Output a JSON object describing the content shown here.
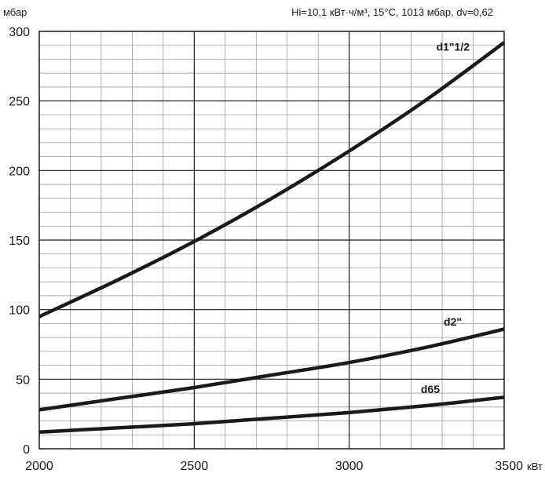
{
  "chart_data": {
    "type": "line",
    "y_unit": "мбар",
    "x_unit": "кВт",
    "conditions_note": "Hi=10,1 кВт·ч/м³, 15°C, 1013 мбар, dv=0,62",
    "xlim": [
      2000,
      3500
    ],
    "ylim": [
      0,
      300
    ],
    "x_ticks": [
      "2000",
      "2500",
      "3000",
      "3500"
    ],
    "y_ticks": [
      "0",
      "50",
      "100",
      "150",
      "200",
      "250",
      "300"
    ],
    "grid": true,
    "series": [
      {
        "name": "d1\"1/2",
        "x": [
          2000,
          2250,
          2500,
          2750,
          3000,
          3250,
          3500
        ],
        "y": [
          95,
          121,
          149,
          180,
          214,
          251,
          292
        ]
      },
      {
        "name": "d2\"",
        "x": [
          2000,
          2250,
          2500,
          2750,
          3000,
          3250,
          3500
        ],
        "y": [
          28,
          36,
          44,
          53,
          62,
          73,
          86
        ]
      },
      {
        "name": "d65",
        "x": [
          2000,
          2250,
          2500,
          2750,
          3000,
          3250,
          3500
        ],
        "y": [
          12,
          15,
          18,
          22,
          26,
          31,
          37
        ]
      }
    ]
  }
}
